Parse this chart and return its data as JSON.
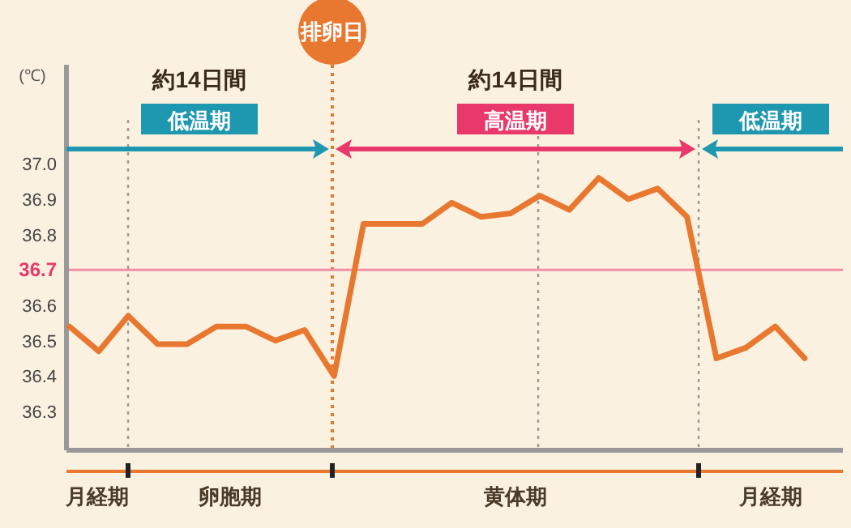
{
  "chart_data": {
    "type": "line",
    "ylabel": "(℃)",
    "categories": [
      null,
      null,
      null,
      null,
      null,
      null,
      null,
      null,
      null,
      null,
      null,
      null,
      null,
      null,
      null,
      null,
      null,
      null,
      null,
      null,
      null,
      null,
      null,
      null,
      null,
      null
    ],
    "series": [
      {
        "color": "#e8782f",
        "values": [
          36.54,
          36.47,
          36.57,
          36.49,
          36.49,
          36.54,
          36.54,
          36.5,
          36.53,
          36.4,
          36.83,
          36.83,
          36.83,
          36.89,
          36.85,
          36.86,
          36.91,
          36.87,
          36.96,
          36.9,
          36.93,
          36.85,
          36.45,
          36.48,
          36.54,
          36.45
        ]
      }
    ],
    "ylim": [
      36.19,
      37.28
    ],
    "yticks": [
      36.3,
      36.4,
      36.5,
      36.6,
      36.7,
      36.8,
      36.9,
      {
        "value": 37,
        "label": "37.0"
      }
    ],
    "tick_labels": "y",
    "marker": "none",
    "line_style": "solid",
    "ref_lines": [
      {
        "axis": "y",
        "value": 36.7,
        "color": "#f08fa8"
      }
    ],
    "annotations": [
      "約14日間",
      "排卵日",
      "約14日間",
      "低温期",
      "高温期",
      "低温期",
      "月経期",
      "卵胞期",
      "黄体期",
      "月経期"
    ]
  }
}
